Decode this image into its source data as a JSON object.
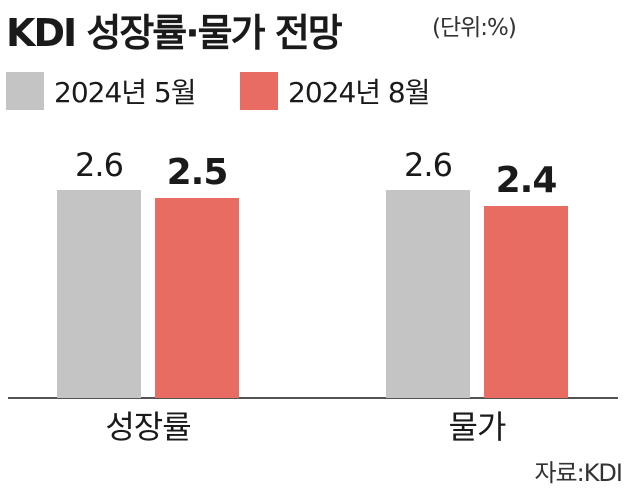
{
  "header": {
    "title": "KDI 성장률·물가 전망",
    "unit": "(단위:%)"
  },
  "footer": {
    "source": "자료:KDI"
  },
  "colors": {
    "may": "#c4c4c4",
    "aug": "#e86c61",
    "axis": "#1a1a1a",
    "text": "#1a1a1a"
  },
  "chart_data": {
    "type": "bar",
    "categories": [
      "성장률",
      "물가"
    ],
    "series": [
      {
        "name": "2024년 5월",
        "values": [
          2.6,
          2.6
        ],
        "value_labels": [
          "2.6",
          "2.6"
        ]
      },
      {
        "name": "2024년 8월",
        "values": [
          2.5,
          2.4
        ],
        "value_labels": [
          "2.5",
          "2.4"
        ]
      }
    ],
    "ylim": [
      0,
      2.6
    ],
    "grid": false,
    "legend": "top-left"
  }
}
